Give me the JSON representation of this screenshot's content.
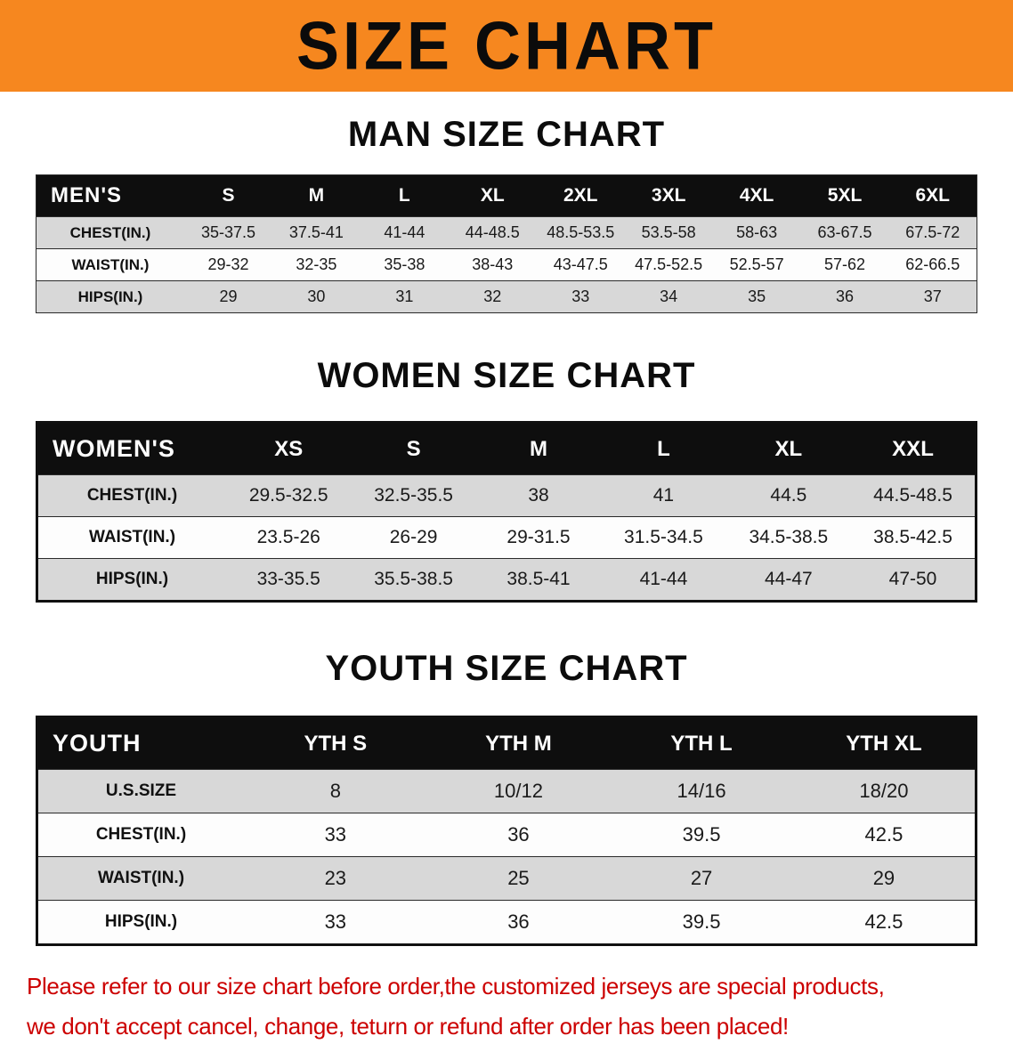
{
  "banner": {
    "title": "SIZE CHART"
  },
  "sections": [
    {
      "id": "men",
      "heading": "MAN SIZE CHART",
      "table": {
        "header": [
          "MEN'S",
          "S",
          "M",
          "L",
          "XL",
          "2XL",
          "3XL",
          "4XL",
          "5XL",
          "6XL"
        ],
        "rows": [
          {
            "label": "CHEST(IN.)",
            "values": [
              "35-37.5",
              "37.5-41",
              "41-44",
              "44-48.5",
              "48.5-53.5",
              "53.5-58",
              "58-63",
              "63-67.5",
              "67.5-72"
            ]
          },
          {
            "label": "WAIST(IN.)",
            "values": [
              "29-32",
              "32-35",
              "35-38",
              "38-43",
              "43-47.5",
              "47.5-52.5",
              "52.5-57",
              "57-62",
              "62-66.5"
            ]
          },
          {
            "label": "HIPS(IN.)",
            "values": [
              "29",
              "30",
              "31",
              "32",
              "33",
              "34",
              "35",
              "36",
              "37"
            ]
          }
        ]
      }
    },
    {
      "id": "women",
      "heading": "WOMEN SIZE CHART",
      "table": {
        "header": [
          "WOMEN'S",
          "XS",
          "S",
          "M",
          "L",
          "XL",
          "XXL"
        ],
        "rows": [
          {
            "label": "CHEST(IN.)",
            "values": [
              "29.5-32.5",
              "32.5-35.5",
              "38",
              "41",
              "44.5",
              "44.5-48.5"
            ]
          },
          {
            "label": "WAIST(IN.)",
            "values": [
              "23.5-26",
              "26-29",
              "29-31.5",
              "31.5-34.5",
              "34.5-38.5",
              "38.5-42.5"
            ]
          },
          {
            "label": "HIPS(IN.)",
            "values": [
              "33-35.5",
              "35.5-38.5",
              "38.5-41",
              "41-44",
              "44-47",
              "47-50"
            ]
          }
        ]
      }
    },
    {
      "id": "youth",
      "heading": "YOUTH SIZE CHART",
      "table": {
        "header": [
          "YOUTH",
          "YTH S",
          "YTH M",
          "YTH L",
          "YTH XL"
        ],
        "rows": [
          {
            "label": "U.S.SIZE",
            "values": [
              "8",
              "10/12",
              "14/16",
              "18/20"
            ]
          },
          {
            "label": "CHEST(IN.)",
            "values": [
              "33",
              "36",
              "39.5",
              "42.5"
            ]
          },
          {
            "label": "WAIST(IN.)",
            "values": [
              "23",
              "25",
              "27",
              "29"
            ]
          },
          {
            "label": "HIPS(IN.)",
            "values": [
              "33",
              "36",
              "39.5",
              "42.5"
            ]
          }
        ]
      }
    }
  ],
  "footer": {
    "line1": "Please refer to our size chart before order,the customized jerseys are special products,",
    "line2": "we don't accept cancel, change, teturn or refund after order has been placed!"
  },
  "colors": {
    "banner_bg": "#f6871f",
    "table_header_bg": "#0e0e0e",
    "shaded_row_bg": "#d8d8d8",
    "note_text": "#cc0000"
  }
}
